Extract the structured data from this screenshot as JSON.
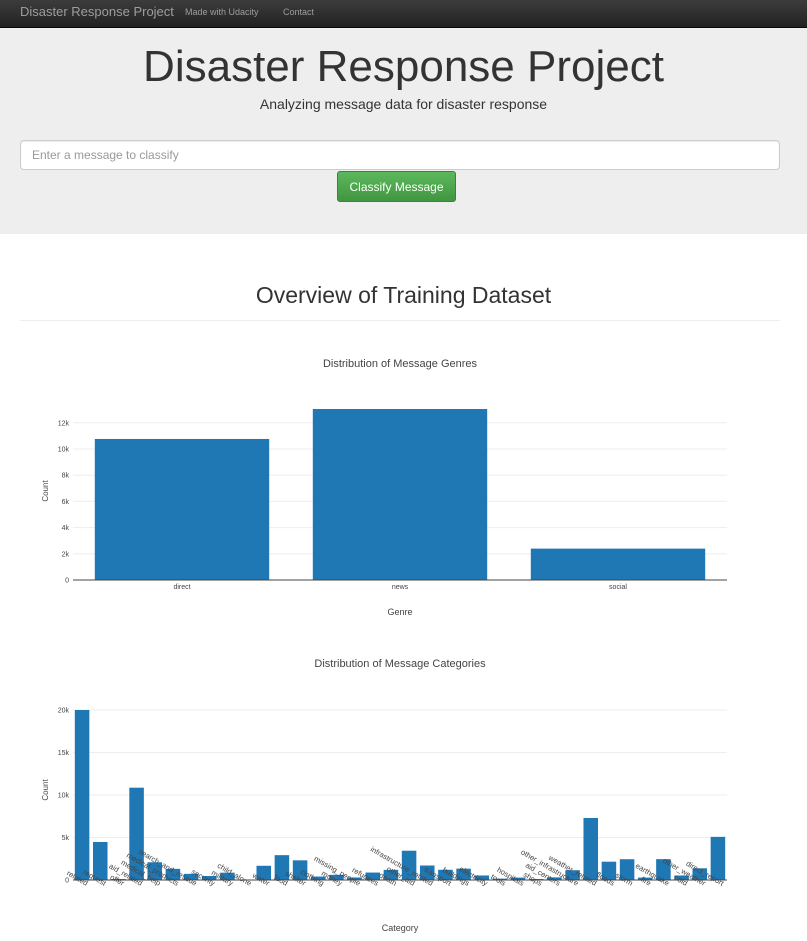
{
  "navbar": {
    "brand": "Disaster Response Project",
    "links": [
      "Made with Udacity",
      "Contact"
    ]
  },
  "hero": {
    "title": "Disaster Response Project",
    "subtitle": "Analyzing message data for disaster response"
  },
  "query": {
    "placeholder": "Enter a message to classify",
    "button_label": "Classify Message"
  },
  "overview": {
    "title": "Overview of Training Dataset"
  },
  "colors": {
    "bar": "#1f77b4",
    "button": "#5cb85c",
    "navbar": "#222222",
    "jumbotron": "#eeeeee"
  },
  "chart_data": [
    {
      "type": "bar",
      "title": "Distribution of Message Genres",
      "xlabel": "Genre",
      "ylabel": "Count",
      "categories": [
        "direct",
        "news",
        "social"
      ],
      "values": [
        10766,
        13054,
        2396
      ],
      "ylim": [
        0,
        13741
      ],
      "yticks": [
        0,
        2000,
        4000,
        6000,
        8000,
        10000,
        12000
      ],
      "ytick_labels": [
        "0",
        "2k",
        "4k",
        "6k",
        "8k",
        "10k",
        "12k"
      ],
      "grid": true
    },
    {
      "type": "bar",
      "title": "Distribution of Message Categories",
      "xlabel": "Category",
      "ylabel": "Count",
      "categories": [
        "related",
        "request",
        "offer",
        "aid_related",
        "medical_help",
        "medical_products",
        "search_and_rescue",
        "security",
        "military",
        "child_alone",
        "water",
        "food",
        "shelter",
        "clothing",
        "money",
        "missing_people",
        "refugees",
        "death",
        "other_aid",
        "infrastructure_related",
        "transport",
        "buildings",
        "electricity",
        "tools",
        "hospitals",
        "shops",
        "aid_centers",
        "other_infrastructure",
        "weather_related",
        "floods",
        "storm",
        "fire",
        "earthquake",
        "cold",
        "other_weather",
        "direct_report"
      ],
      "values": [
        20000,
        4474,
        118,
        10860,
        2084,
        1313,
        724,
        471,
        860,
        0,
        1672,
        2923,
        2314,
        405,
        604,
        298,
        875,
        1194,
        3446,
        1705,
        1201,
        1333,
        532,
        159,
        283,
        120,
        309,
        1151,
        7297,
        2155,
        2443,
        282,
        2455,
        530,
        1376,
        5075
      ],
      "ylim": [
        0,
        20000
      ],
      "yticks": [
        0,
        5000,
        10000,
        15000,
        20000
      ],
      "ytick_labels": [
        "0",
        "5k",
        "10k",
        "15k",
        "20k"
      ],
      "grid": true
    }
  ]
}
